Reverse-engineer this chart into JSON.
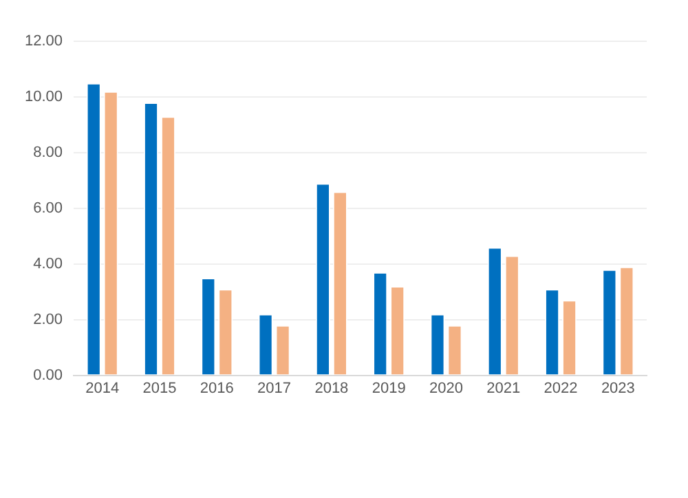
{
  "chart_data": {
    "type": "bar",
    "categories": [
      "2014",
      "2015",
      "2016",
      "2017",
      "2018",
      "2019",
      "2020",
      "2021",
      "2022",
      "2023"
    ],
    "series": [
      {
        "color": "#0070c0",
        "values": [
          10.5,
          9.8,
          3.5,
          2.2,
          6.9,
          3.7,
          2.2,
          4.6,
          3.1,
          3.8
        ]
      },
      {
        "color": "#f4b183",
        "values": [
          10.2,
          9.3,
          3.1,
          1.8,
          6.6,
          3.2,
          1.8,
          4.3,
          2.7,
          3.9
        ]
      }
    ],
    "ylim": [
      0,
      12
    ],
    "yticks": [
      {
        "value": 0,
        "label": "0.00"
      },
      {
        "value": 2,
        "label": "2.00"
      },
      {
        "value": 4,
        "label": "4.00"
      },
      {
        "value": 6,
        "label": "6.00"
      },
      {
        "value": 8,
        "label": "8.00"
      },
      {
        "value": 10,
        "label": "10.00"
      },
      {
        "value": 12,
        "label": "12.00"
      }
    ],
    "grid": "y",
    "legend": false
  }
}
